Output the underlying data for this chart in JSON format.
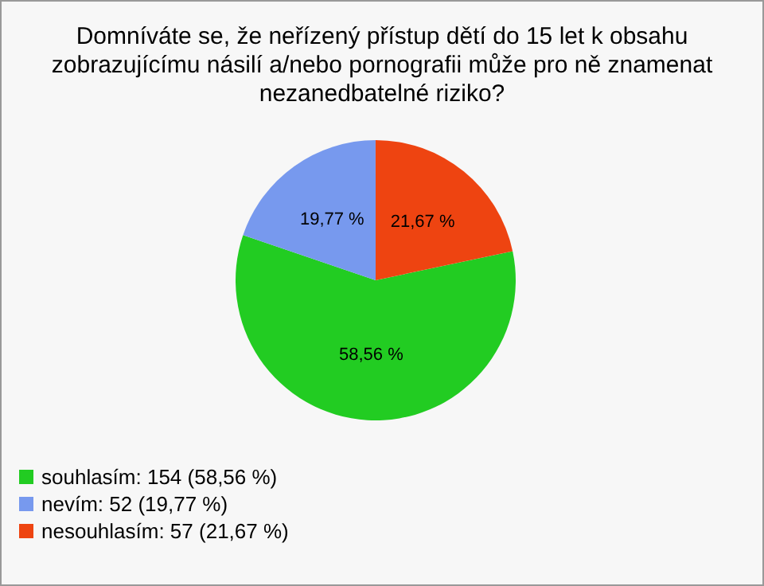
{
  "chart_data": {
    "type": "pie",
    "title": "Domníváte se, že neřízený přístup dětí do 15 let k obsahu\nzobrazujícímu násilí a/nebo pornografii může pro ně znamenat\nnezanedbatelné riziko?",
    "categories": [
      "souhlasím: 154 (58,56 %)",
      "nevím: 52 (19,77 %)",
      "nesouhlasím: 57 (21,67 %)"
    ],
    "values": [
      58.56,
      19.77,
      21.67
    ],
    "value_labels": [
      "58,56 %",
      "19,77 %",
      "21,67 %"
    ],
    "colors": [
      "#22cc22",
      "#7799ee",
      "#ee4411"
    ],
    "legend": "bottom left"
  }
}
